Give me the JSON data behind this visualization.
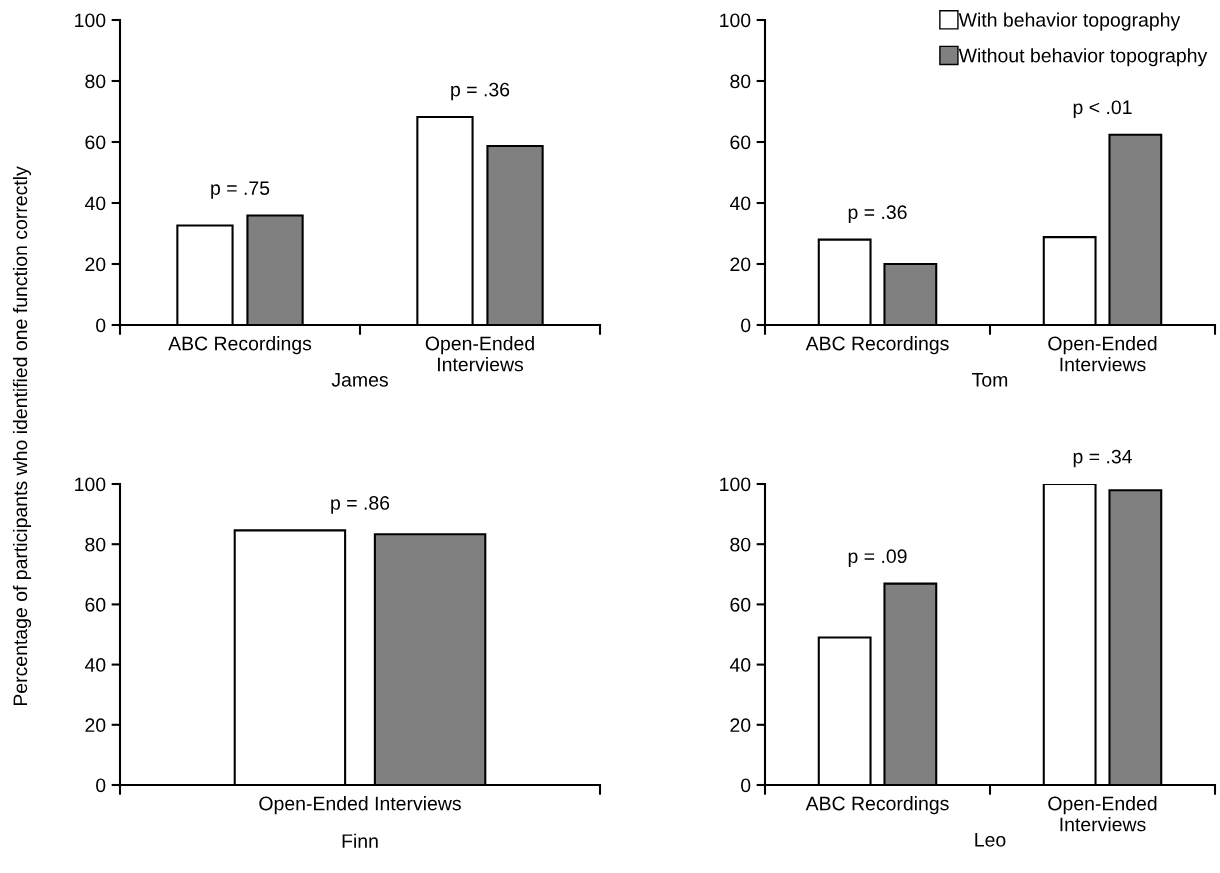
{
  "chart_data": [
    {
      "type": "bar",
      "categories": [
        "ABC Recordings",
        "Open-Ended\nInterviews"
      ],
      "xlabel": "James",
      "ylabel": "Percentage of participants who identified one function correctly",
      "ylim": [
        0,
        100
      ],
      "yticks": [
        0,
        20,
        40,
        60,
        80,
        100
      ],
      "series": [
        {
          "color": "#ffffff",
          "values": [
            32.6,
            68.2
          ]
        },
        {
          "color": "#808080",
          "values": [
            35.9,
            58.7
          ]
        }
      ],
      "annotations": [
        "p = .75",
        "p = .36"
      ]
    },
    {
      "type": "bar",
      "categories": [
        "ABC Recordings",
        "Open-Ended\nInterviews"
      ],
      "xlabel": "Tom",
      "ylim": [
        0,
        100
      ],
      "yticks": [
        0,
        20,
        40,
        60,
        80,
        100
      ],
      "legend": "top right",
      "series": [
        {
          "name": "With behavior topography",
          "color": "#ffffff",
          "values": [
            28.0,
            28.8
          ]
        },
        {
          "name": "Without behavior topography",
          "color": "#808080",
          "values": [
            20.0,
            62.4
          ]
        }
      ],
      "annotations": [
        "p = .36",
        "p < .01"
      ]
    },
    {
      "type": "bar",
      "categories": [
        "Open-Ended Interviews"
      ],
      "xlabel": "Finn",
      "ylim": [
        0,
        100
      ],
      "yticks": [
        0,
        20,
        40,
        60,
        80,
        100
      ],
      "series": [
        {
          "color": "#ffffff",
          "values": [
            84.6
          ]
        },
        {
          "color": "#808080",
          "values": [
            83.3
          ]
        }
      ],
      "annotations": [
        "p = .86"
      ]
    },
    {
      "type": "bar",
      "categories": [
        "ABC Recordings",
        "Open-Ended\nInterviews"
      ],
      "xlabel": "Leo",
      "ylim": [
        0,
        100
      ],
      "yticks": [
        0,
        20,
        40,
        60,
        80,
        100
      ],
      "series": [
        {
          "color": "#ffffff",
          "values": [
            49.0,
            100
          ]
        },
        {
          "color": "#808080",
          "values": [
            66.9,
            97.9
          ]
        }
      ],
      "annotations": [
        "p = .09",
        "p = .34"
      ]
    }
  ]
}
